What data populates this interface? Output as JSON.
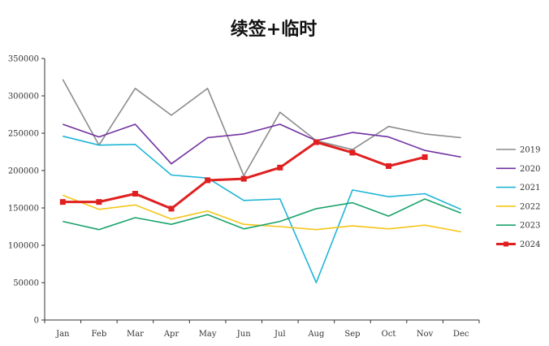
{
  "chart_data": {
    "type": "line",
    "title": "续签+临时",
    "xlabel": "",
    "ylabel": "",
    "categories": [
      "Jan",
      "Feb",
      "Mar",
      "Apr",
      "May",
      "Jun",
      "Jul",
      "Aug",
      "Sep",
      "Oct",
      "Nov",
      "Dec"
    ],
    "ylim": [
      0,
      350000
    ],
    "yticks": [
      0,
      50000,
      100000,
      150000,
      200000,
      250000,
      300000,
      350000
    ],
    "ytick_labels": [
      "0",
      "50000",
      "100000",
      "150000",
      "200000",
      "250000",
      "300000",
      "350000"
    ],
    "grid": false,
    "legend_position": "right",
    "series": [
      {
        "name": "2019",
        "color": "#8c8c8c",
        "marker": false,
        "bold": false,
        "values": [
          322000,
          234000,
          310000,
          274000,
          310000,
          193000,
          278000,
          240000,
          228000,
          259000,
          249000,
          244000
        ]
      },
      {
        "name": "2020",
        "color": "#7030a0",
        "marker": false,
        "bold": false,
        "values": [
          262000,
          245000,
          262000,
          209000,
          244000,
          249000,
          262000,
          240000,
          251000,
          245000,
          227000,
          218000
        ]
      },
      {
        "name": "2021",
        "color": "#1fb5d6",
        "marker": false,
        "bold": false,
        "values": [
          246000,
          234000,
          235000,
          194000,
          190000,
          160000,
          162000,
          50000,
          174000,
          165000,
          169000,
          148000
        ]
      },
      {
        "name": "2022",
        "color": "#f5c518",
        "marker": false,
        "bold": false,
        "values": [
          167000,
          148000,
          154000,
          135000,
          146000,
          128000,
          125000,
          121000,
          126000,
          122000,
          127000,
          118000
        ]
      },
      {
        "name": "2023",
        "color": "#1aa36b",
        "marker": false,
        "bold": false,
        "values": [
          132000,
          121000,
          137000,
          128000,
          141000,
          122000,
          132000,
          149000,
          157000,
          139000,
          162000,
          143000
        ]
      },
      {
        "name": "2024",
        "color": "#e02020",
        "marker": true,
        "bold": true,
        "values": [
          158000,
          158000,
          169000,
          149000,
          187000,
          189000,
          204000,
          238000,
          224000,
          206000,
          218000,
          null
        ]
      }
    ]
  }
}
